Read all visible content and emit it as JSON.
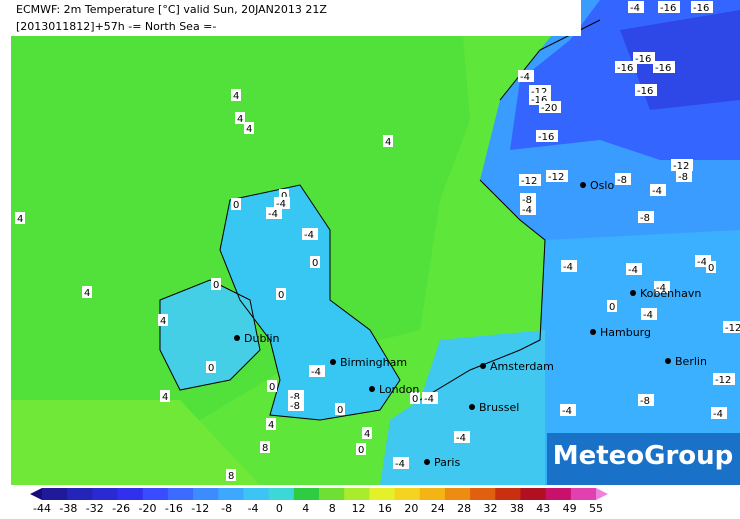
{
  "header": {
    "line1": "ECMWF: 2m Temperature [°C] valid Sun, 20JAN2013 21Z",
    "line2": "[2013011812]+57h -= North Sea =-"
  },
  "cities": [
    "Dublin",
    "Birmingham",
    "London",
    "Amsterdam",
    "Brussel",
    "Paris",
    "Hamburg",
    "Kobenhavn",
    "Berlin",
    "Oslo"
  ],
  "contour_labels": [
    4,
    4,
    4,
    4,
    4,
    4,
    4,
    4,
    0,
    0,
    0,
    0,
    -4,
    -4,
    -4,
    0,
    0,
    0,
    -8,
    -8,
    -4,
    0,
    4,
    8,
    8,
    4,
    0,
    0,
    -4,
    -4,
    -4,
    -4,
    -12,
    -16,
    -20,
    -16,
    -12,
    -12,
    -8,
    -4,
    -8,
    -4,
    -8,
    -12,
    -8,
    -4,
    -4,
    -4,
    -4,
    0,
    -4,
    0,
    -12,
    -12,
    -8,
    -4,
    -4,
    -16,
    -16,
    -16,
    -16,
    -16,
    -16,
    -4
  ],
  "logo": "MeteoGroup",
  "colorbar": {
    "ticks": [
      -44,
      -38,
      -32,
      -26,
      -20,
      -16,
      -12,
      -8,
      -4,
      0,
      4,
      8,
      12,
      16,
      20,
      24,
      28,
      32,
      38,
      43,
      49,
      55
    ],
    "colors": [
      "#1a0a7a",
      "#1e1a9a",
      "#2424b8",
      "#2a2ad4",
      "#3030ee",
      "#3a4cff",
      "#3c6cff",
      "#3c8cff",
      "#3ca8ff",
      "#3cc4f4",
      "#3cd8d8",
      "#2ecc40",
      "#6ee034",
      "#a8ec2c",
      "#e4f02a",
      "#f4d420",
      "#f4b414",
      "#ec8c10",
      "#e06010",
      "#c83010",
      "#b01020",
      "#c8106c",
      "#e040b0",
      "#f080e0"
    ]
  }
}
